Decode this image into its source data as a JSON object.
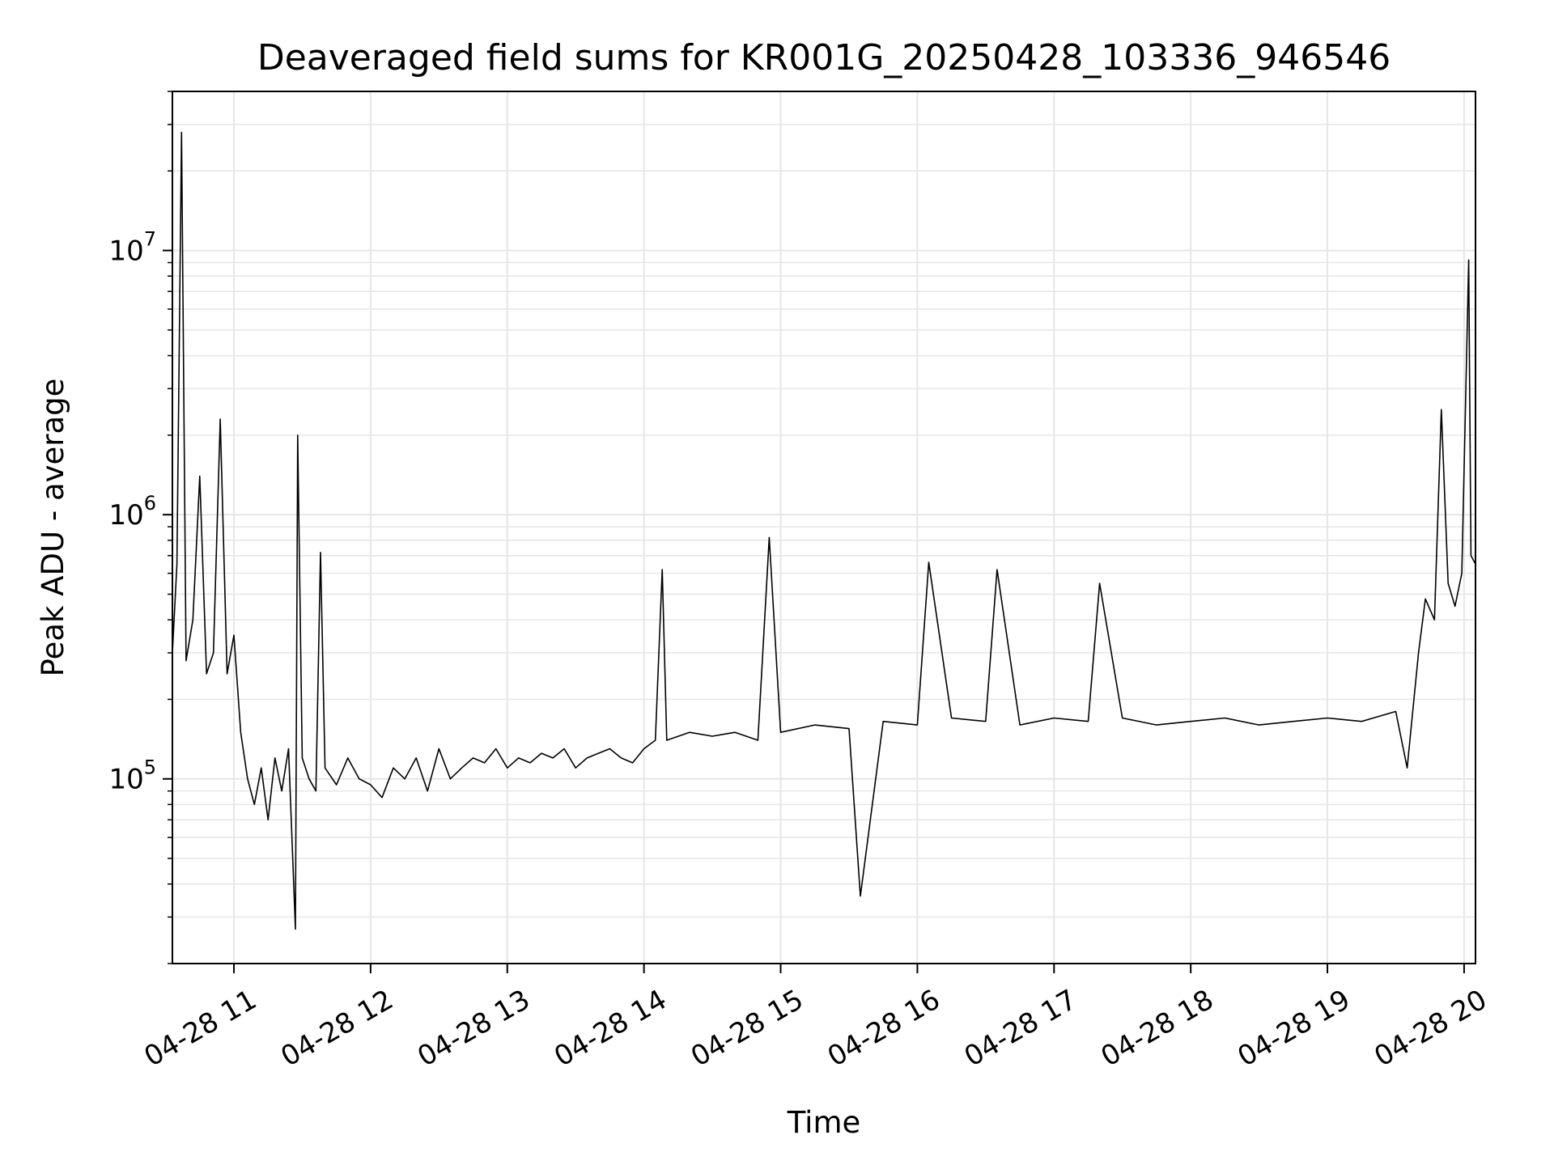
{
  "chart_data": {
    "type": "line",
    "title": "Deaveraged field sums for KR001G_20250428_103336_946546",
    "xlabel": "Time",
    "ylabel": "Peak ADU - average",
    "yscale": "log",
    "xlim": [
      "04-28 10:33",
      "04-28 20:05"
    ],
    "ylim": [
      20000,
      40000000
    ],
    "grid": true,
    "line_color": "#000000",
    "grid_color": "#e6e6e6",
    "x_ticks": [
      {
        "t": "04-28 11:00",
        "label": "04-28 11"
      },
      {
        "t": "04-28 12:00",
        "label": "04-28 12"
      },
      {
        "t": "04-28 13:00",
        "label": "04-28 13"
      },
      {
        "t": "04-28 14:00",
        "label": "04-28 14"
      },
      {
        "t": "04-28 15:00",
        "label": "04-28 15"
      },
      {
        "t": "04-28 16:00",
        "label": "04-28 16"
      },
      {
        "t": "04-28 17:00",
        "label": "04-28 17"
      },
      {
        "t": "04-28 18:00",
        "label": "04-28 18"
      },
      {
        "t": "04-28 19:00",
        "label": "04-28 19"
      },
      {
        "t": "04-28 20:00",
        "label": "04-28 20"
      }
    ],
    "y_ticks": [
      {
        "value": 100000,
        "base": "10",
        "exp": "5"
      },
      {
        "value": 1000000,
        "base": "10",
        "exp": "6"
      },
      {
        "value": 10000000,
        "base": "10",
        "exp": "7"
      }
    ],
    "series": [
      {
        "points": [
          [
            "04-28 10:33",
            300000
          ],
          [
            "04-28 10:35",
            650000
          ],
          [
            "04-28 10:37",
            28000000
          ],
          [
            "04-28 10:39",
            280000
          ],
          [
            "04-28 10:42",
            400000
          ],
          [
            "04-28 10:45",
            1400000
          ],
          [
            "04-28 10:48",
            250000
          ],
          [
            "04-28 10:51",
            300000
          ],
          [
            "04-28 10:54",
            2300000
          ],
          [
            "04-28 10:57",
            250000
          ],
          [
            "04-28 11:00",
            350000
          ],
          [
            "04-28 11:03",
            150000
          ],
          [
            "04-28 11:06",
            100000
          ],
          [
            "04-28 11:09",
            80000
          ],
          [
            "04-28 11:12",
            110000
          ],
          [
            "04-28 11:15",
            70000
          ],
          [
            "04-28 11:18",
            120000
          ],
          [
            "04-28 11:21",
            90000
          ],
          [
            "04-28 11:24",
            130000
          ],
          [
            "04-28 11:27",
            27000
          ],
          [
            "04-28 11:28",
            2000000
          ],
          [
            "04-28 11:30",
            120000
          ],
          [
            "04-28 11:33",
            100000
          ],
          [
            "04-28 11:36",
            90000
          ],
          [
            "04-28 11:38",
            720000
          ],
          [
            "04-28 11:40",
            110000
          ],
          [
            "04-28 11:45",
            95000
          ],
          [
            "04-28 11:50",
            120000
          ],
          [
            "04-28 11:55",
            100000
          ],
          [
            "04-28 12:00",
            95000
          ],
          [
            "04-28 12:05",
            85000
          ],
          [
            "04-28 12:10",
            110000
          ],
          [
            "04-28 12:15",
            100000
          ],
          [
            "04-28 12:20",
            120000
          ],
          [
            "04-28 12:25",
            90000
          ],
          [
            "04-28 12:30",
            130000
          ],
          [
            "04-28 12:35",
            100000
          ],
          [
            "04-28 12:40",
            110000
          ],
          [
            "04-28 12:45",
            120000
          ],
          [
            "04-28 12:50",
            115000
          ],
          [
            "04-28 12:55",
            130000
          ],
          [
            "04-28 13:00",
            110000
          ],
          [
            "04-28 13:05",
            120000
          ],
          [
            "04-28 13:10",
            115000
          ],
          [
            "04-28 13:15",
            125000
          ],
          [
            "04-28 13:20",
            120000
          ],
          [
            "04-28 13:25",
            130000
          ],
          [
            "04-28 13:30",
            110000
          ],
          [
            "04-28 13:35",
            120000
          ],
          [
            "04-28 13:40",
            125000
          ],
          [
            "04-28 13:45",
            130000
          ],
          [
            "04-28 13:50",
            120000
          ],
          [
            "04-28 13:55",
            115000
          ],
          [
            "04-28 14:00",
            130000
          ],
          [
            "04-28 14:05",
            140000
          ],
          [
            "04-28 14:08",
            620000
          ],
          [
            "04-28 14:10",
            140000
          ],
          [
            "04-28 14:20",
            150000
          ],
          [
            "04-28 14:30",
            145000
          ],
          [
            "04-28 14:40",
            150000
          ],
          [
            "04-28 14:50",
            140000
          ],
          [
            "04-28 14:55",
            820000
          ],
          [
            "04-28 15:00",
            150000
          ],
          [
            "04-28 15:15",
            160000
          ],
          [
            "04-28 15:30",
            155000
          ],
          [
            "04-28 15:35",
            36000
          ],
          [
            "04-28 15:45",
            165000
          ],
          [
            "04-28 16:00",
            160000
          ],
          [
            "04-28 16:05",
            660000
          ],
          [
            "04-28 16:15",
            170000
          ],
          [
            "04-28 16:30",
            165000
          ],
          [
            "04-28 16:35",
            620000
          ],
          [
            "04-28 16:45",
            160000
          ],
          [
            "04-28 17:00",
            170000
          ],
          [
            "04-28 17:15",
            165000
          ],
          [
            "04-28 17:20",
            550000
          ],
          [
            "04-28 17:30",
            170000
          ],
          [
            "04-28 17:45",
            160000
          ],
          [
            "04-28 18:00",
            165000
          ],
          [
            "04-28 18:15",
            170000
          ],
          [
            "04-28 18:30",
            160000
          ],
          [
            "04-28 18:45",
            165000
          ],
          [
            "04-28 19:00",
            170000
          ],
          [
            "04-28 19:15",
            165000
          ],
          [
            "04-28 19:30",
            180000
          ],
          [
            "04-28 19:35",
            110000
          ],
          [
            "04-28 19:40",
            300000
          ],
          [
            "04-28 19:43",
            480000
          ],
          [
            "04-28 19:47",
            400000
          ],
          [
            "04-28 19:50",
            2500000
          ],
          [
            "04-28 19:53",
            550000
          ],
          [
            "04-28 19:56",
            450000
          ],
          [
            "04-28 19:59",
            600000
          ],
          [
            "04-28 20:02",
            9200000
          ],
          [
            "04-28 20:03",
            700000
          ],
          [
            "04-28 20:05",
            650000
          ]
        ]
      }
    ]
  }
}
